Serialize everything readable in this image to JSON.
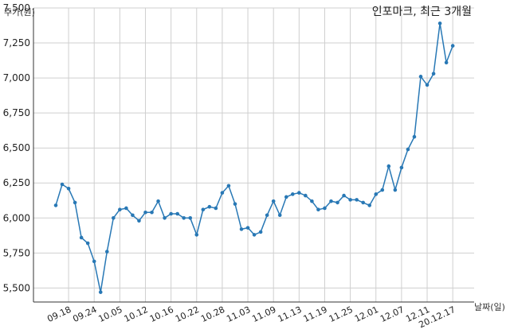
{
  "chart_data": {
    "type": "line",
    "title": "인포마크, 최근 3개월",
    "xlabel": "날짜(일)",
    "ylabel": "주가(원)",
    "ylim": [
      5400,
      7500
    ],
    "yticks": [
      5500,
      5750,
      6000,
      6250,
      6500,
      6750,
      7000,
      7250,
      7500
    ],
    "ytick_labels": [
      "5,500",
      "5,750",
      "6,000",
      "6,250",
      "6,500",
      "6,750",
      "7,000",
      "7,250",
      "7,500"
    ],
    "xtick_positions": [
      2,
      6,
      10,
      14,
      18,
      22,
      26,
      30,
      34,
      38,
      42,
      46,
      50,
      54,
      58,
      62
    ],
    "xtick_labels": [
      "09.18",
      "09.24",
      "10.05",
      "10.12",
      "10.16",
      "10.22",
      "10.28",
      "11.03",
      "11.09",
      "11.13",
      "11.19",
      "11.25",
      "12.01",
      "12.07",
      "12.11",
      "20.12.17"
    ],
    "grid": true,
    "color": "#2878b5",
    "series": [
      {
        "name": "",
        "values": [
          6090,
          6240,
          6210,
          6110,
          5860,
          5820,
          5690,
          5470,
          5760,
          6000,
          6060,
          6070,
          6020,
          5980,
          6040,
          6040,
          6120,
          6000,
          6030,
          6030,
          6000,
          6000,
          5880,
          6060,
          6080,
          6070,
          6180,
          6230,
          6100,
          5920,
          5930,
          5880,
          5900,
          6020,
          6120,
          6020,
          6150,
          6170,
          6180,
          6160,
          6120,
          6060,
          6070,
          6120,
          6110,
          6160,
          6130,
          6130,
          6110,
          6090,
          6170,
          6200,
          6370,
          6200,
          6360,
          6490,
          6580,
          7010,
          6950,
          7030,
          7390,
          7110,
          7230
        ]
      }
    ]
  }
}
